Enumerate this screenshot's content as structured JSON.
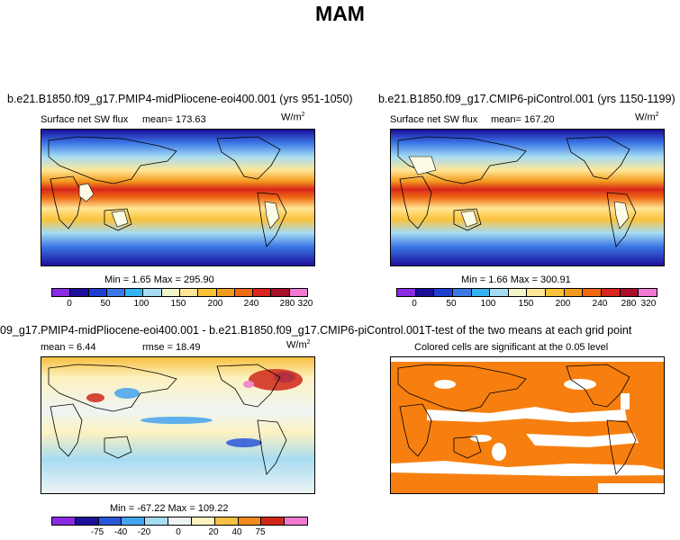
{
  "figure": {
    "title": "MAM"
  },
  "panels": {
    "top_left": {
      "title": "b.e21.B1850.f09_g17.PMIP4-midPliocene-eoi400.001 (yrs 951-1050)",
      "left_label": "Surface net SW flux",
      "mean_label": "mean= 173.63",
      "units": "W/m",
      "units_sup": "2",
      "minmax": "Min =    1.65  Max = 295.90",
      "colorbar_ticks": [
        "0",
        "50",
        "100",
        "150",
        "200",
        "240",
        "280",
        "320"
      ]
    },
    "top_right": {
      "title": "b.e21.B1850.f09_g17.CMIP6-piControl.001 (yrs 1150-1199)",
      "left_label": "Surface net SW flux",
      "mean_label": "mean= 167.20",
      "units": "W/m",
      "units_sup": "2",
      "minmax": "Min =    1.66  Max = 300.91",
      "colorbar_ticks": [
        "0",
        "50",
        "100",
        "150",
        "200",
        "240",
        "280",
        "320"
      ]
    },
    "bottom_left": {
      "title": "09_g17.PMIP4-midPliocene-eoi400.001 - b.e21.B1850.f09_g17.CMIP6-piControl.001",
      "mean_label": "mean =    6.44",
      "rmse_label": "rmse =   18.49",
      "units": "W/m",
      "units_sup": "2",
      "minmax": "Min = -67.22  Max = 109.22",
      "colorbar_ticks": [
        "-75",
        "-40",
        "-20",
        "0",
        "20",
        "40",
        "75"
      ]
    },
    "bottom_right": {
      "title": "T-test of the two means at each grid point",
      "subtitle": "Colored cells are significant at the 0.05 level"
    }
  },
  "colors": {
    "field_bar": [
      "#8a2be2",
      "#1c0f9a",
      "#1e3fd0",
      "#3c78e6",
      "#34b4f0",
      "#a6dcf2",
      "#f0f4c8",
      "#ffe696",
      "#fcc23a",
      "#f49b1e",
      "#f06a14",
      "#d8261c",
      "#a8102a",
      "#f07ad2"
    ],
    "diff_bar": [
      "#8a2be2",
      "#1c0f9a",
      "#2a56d8",
      "#44a4ee",
      "#a8dcf2",
      "#eef4f4",
      "#fdf2c0",
      "#f8c040",
      "#f08a1c",
      "#d02818",
      "#f07ad2"
    ],
    "ttest_fill": "#f77f0f"
  }
}
